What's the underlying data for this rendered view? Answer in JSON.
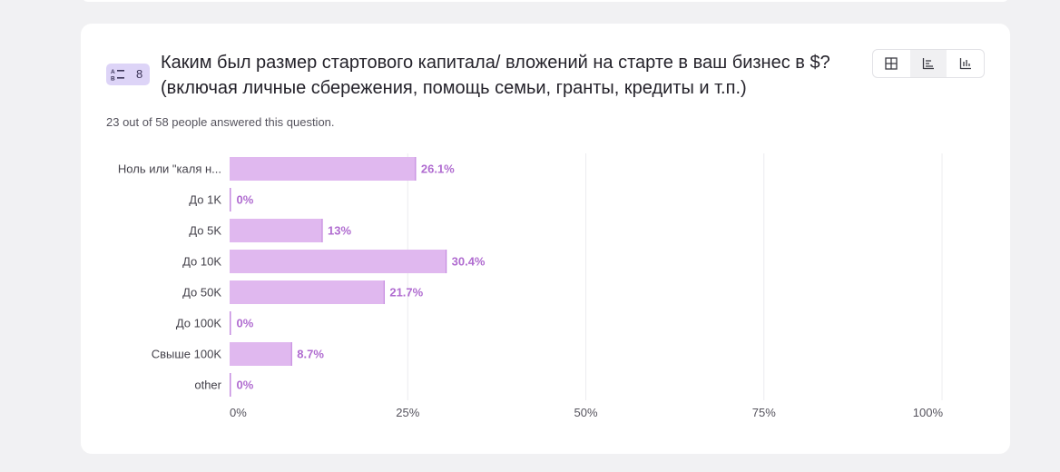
{
  "question": {
    "number": "8",
    "title": "Каким был размер стартового капитала/ вложений на старте в ваш бизнес в $? (включая личные сбережения, помощь семьи, гранты, кредиты и т.п.)",
    "answered_text": "23 out of 58 people answered this question."
  },
  "toolbar": {
    "views": [
      {
        "icon": "table-grid-icon",
        "active": false
      },
      {
        "icon": "horizontal-bar-chart-icon",
        "active": true
      },
      {
        "icon": "vertical-bar-chart-icon",
        "active": false
      }
    ]
  },
  "colors": {
    "bar_fill": "#e0b8ef",
    "bar_edge": "#c58be0",
    "value_label": "#b06cd0",
    "badge": "#ddd4f7"
  },
  "chart_data": {
    "type": "bar",
    "orientation": "horizontal",
    "categories": [
      "Ноль или \"каля н...",
      "До 1K",
      "До 5K",
      "До 10K",
      "До 50K",
      "До 100K",
      "Свыше 100K",
      "other"
    ],
    "values": [
      26.1,
      0,
      13,
      30.4,
      21.7,
      0,
      8.7,
      0
    ],
    "value_labels": [
      "26.1%",
      "0%",
      "13%",
      "30.4%",
      "21.7%",
      "0%",
      "8.7%",
      "0%"
    ],
    "xlim": [
      0,
      100
    ],
    "ticks": [
      0,
      25,
      50,
      75,
      100
    ],
    "tick_labels": [
      "0%",
      "25%",
      "50%",
      "75%",
      "100%"
    ],
    "grid": true
  }
}
